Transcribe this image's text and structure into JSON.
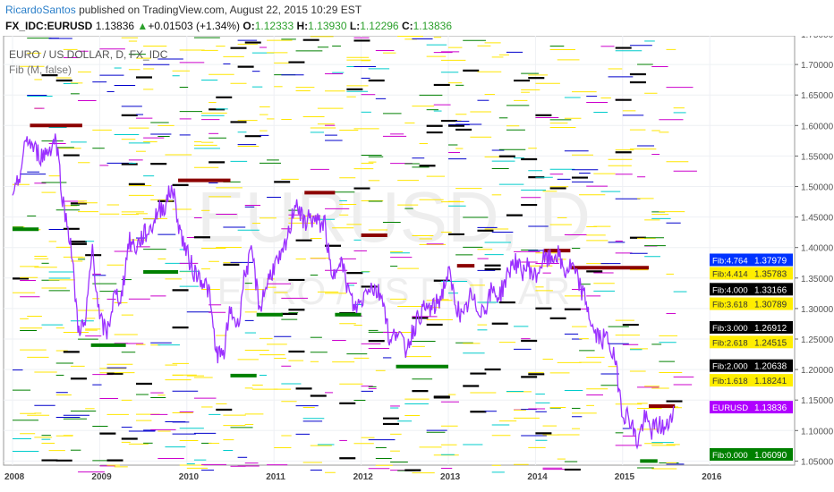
{
  "header": {
    "user": "RicardoSantos",
    "published": "published on TradingView.com, August 22, 2015 10:29 EST",
    "symbol": "FX_IDC:EURUSD",
    "price": "1.13836",
    "arrow": "▲",
    "change": "+0.01503 (+1.34%)",
    "o_label": "O:",
    "o": "1.12333",
    "h_label": "H:",
    "h": "1.13930",
    "l_label": "L:",
    "l": "1.12296",
    "c_label": "C:",
    "c": "1.13836"
  },
  "legend": {
    "title": "EURO / US DOLLAR, D, FX_IDC",
    "indicator": "Fib (M, false)"
  },
  "watermark": {
    "symbol": "EURUSD, D",
    "name": "EURO / US DOLLAR"
  },
  "chart_data": {
    "type": "line",
    "title": "EURO / US DOLLAR, D, FX_IDC",
    "ylim": [
      1.02,
      1.76
    ],
    "yticks": [
      "1.75000",
      "1.70000",
      "1.65000",
      "1.60000",
      "1.55000",
      "1.50000",
      "1.45000",
      "1.40000",
      "1.35000",
      "1.30000",
      "1.25000",
      "1.20000",
      "1.15000",
      "1.10000",
      "1.05000"
    ],
    "xticks": [
      "2008",
      "2009",
      "2010",
      "2011",
      "2012",
      "2013",
      "2014",
      "2015",
      "2016"
    ],
    "xlim": [
      2008.0,
      2016.95
    ],
    "series": [
      {
        "name": "EURUSD",
        "color": "#9b30ff",
        "start": 2008.0,
        "step_months": 1,
        "values": [
          1.47,
          1.52,
          1.58,
          1.56,
          1.55,
          1.56,
          1.58,
          1.47,
          1.41,
          1.27,
          1.27,
          1.4,
          1.28,
          1.26,
          1.32,
          1.32,
          1.41,
          1.4,
          1.42,
          1.43,
          1.46,
          1.47,
          1.5,
          1.43,
          1.39,
          1.36,
          1.35,
          1.33,
          1.23,
          1.22,
          1.3,
          1.27,
          1.36,
          1.39,
          1.3,
          1.34,
          1.37,
          1.38,
          1.42,
          1.48,
          1.44,
          1.45,
          1.44,
          1.44,
          1.34,
          1.39,
          1.34,
          1.3,
          1.31,
          1.34,
          1.33,
          1.32,
          1.24,
          1.27,
          1.23,
          1.26,
          1.29,
          1.3,
          1.3,
          1.32,
          1.36,
          1.31,
          1.28,
          1.32,
          1.3,
          1.3,
          1.33,
          1.32,
          1.35,
          1.38,
          1.36,
          1.37,
          1.35,
          1.38,
          1.38,
          1.39,
          1.36,
          1.37,
          1.34,
          1.31,
          1.26,
          1.25,
          1.25,
          1.21,
          1.13,
          1.12,
          1.08,
          1.12,
          1.1,
          1.11,
          1.1,
          1.14
        ]
      }
    ],
    "highs": [
      [
        2008.2,
        1.6,
        2008.8
      ],
      [
        2009.9,
        1.51,
        2010.5
      ],
      [
        2011.35,
        1.49,
        2011.7
      ],
      [
        2012.0,
        1.42,
        2012.3
      ],
      [
        2013.1,
        1.37,
        2013.3
      ],
      [
        2014.1,
        1.395,
        2014.4
      ],
      [
        2014.4,
        1.367,
        2015.3
      ],
      [
        2015.3,
        1.14,
        2015.6
      ]
    ],
    "lows": [
      [
        2008.0,
        1.43,
        2008.3
      ],
      [
        2008.9,
        1.24,
        2009.3
      ],
      [
        2009.5,
        1.36,
        2009.9
      ],
      [
        2010.5,
        1.19,
        2010.8
      ],
      [
        2010.8,
        1.29,
        2011.1
      ],
      [
        2011.7,
        1.29,
        2012.0
      ],
      [
        2012.4,
        1.205,
        2013.0
      ],
      [
        2015.2,
        1.05,
        2015.4
      ]
    ],
    "fib_labels": [
      {
        "text": "Fib:4.764",
        "value": "1.37979",
        "v": 1.37979,
        "bg": "#0033ff",
        "fg": "#fff"
      },
      {
        "text": "Fib:4.414",
        "value": "1.35783",
        "v": 1.35783,
        "bg": "#ffee00",
        "fg": "#333"
      },
      {
        "text": "Fib:4.000",
        "value": "1.33166",
        "v": 1.33166,
        "bg": "#000",
        "fg": "#fff"
      },
      {
        "text": "Fib:3.618",
        "value": "1.30789",
        "v": 1.30789,
        "bg": "#ffee00",
        "fg": "#333"
      },
      {
        "text": "Fib:3.000",
        "value": "1.26912",
        "v": 1.26912,
        "bg": "#000",
        "fg": "#fff"
      },
      {
        "text": "Fib:2.618",
        "value": "1.24515",
        "v": 1.24515,
        "bg": "#ffee00",
        "fg": "#333"
      },
      {
        "text": "Fib:2.000",
        "value": "1.20638",
        "v": 1.20638,
        "bg": "#000",
        "fg": "#fff"
      },
      {
        "text": "Fib:1.618",
        "value": "1.18241",
        "v": 1.18241,
        "bg": "#ffee00",
        "fg": "#333"
      },
      {
        "text": "EURUSD",
        "value": "1.13836",
        "v": 1.13836,
        "bg": "#b000ff",
        "fg": "#fff"
      },
      {
        "text": "Fib:0.000",
        "value": "1.06090",
        "v": 1.0609,
        "bg": "#008000",
        "fg": "#fff"
      }
    ]
  }
}
